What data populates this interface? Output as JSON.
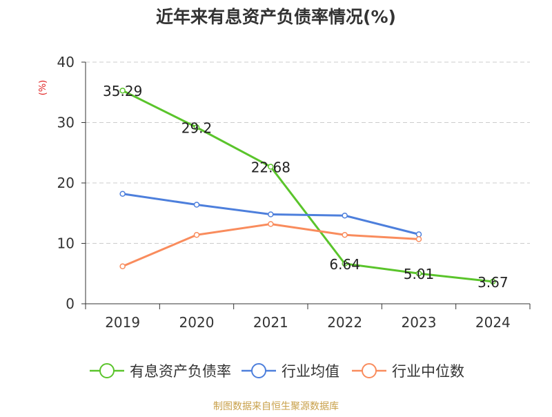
{
  "chart_data": {
    "type": "line",
    "title": "近年来有息资产负债率情况(%)",
    "ylabel": "(%)",
    "xlabel": "",
    "categories": [
      "2019",
      "2020",
      "2021",
      "2022",
      "2023",
      "2024"
    ],
    "ylim": [
      0,
      40
    ],
    "yticks": [
      0,
      10,
      20,
      30,
      40
    ],
    "grid": true,
    "legend_position": "bottom",
    "series": [
      {
        "name": "有息资产负债率",
        "color": "#5ac42b",
        "values": [
          35.29,
          29.2,
          22.68,
          6.64,
          5.01,
          3.67
        ],
        "show_labels": true
      },
      {
        "name": "行业均值",
        "color": "#4d7fdc",
        "values": [
          18.2,
          16.4,
          14.8,
          14.6,
          11.5,
          null
        ],
        "show_labels": false
      },
      {
        "name": "行业中位数",
        "color": "#f98c5d",
        "values": [
          6.2,
          11.4,
          13.2,
          11.4,
          10.7,
          null
        ],
        "show_labels": false
      }
    ],
    "source": "制图数据来自恒生聚源数据库",
    "source_color": "#c8a04a",
    "ylabel_color": "#e02020"
  }
}
